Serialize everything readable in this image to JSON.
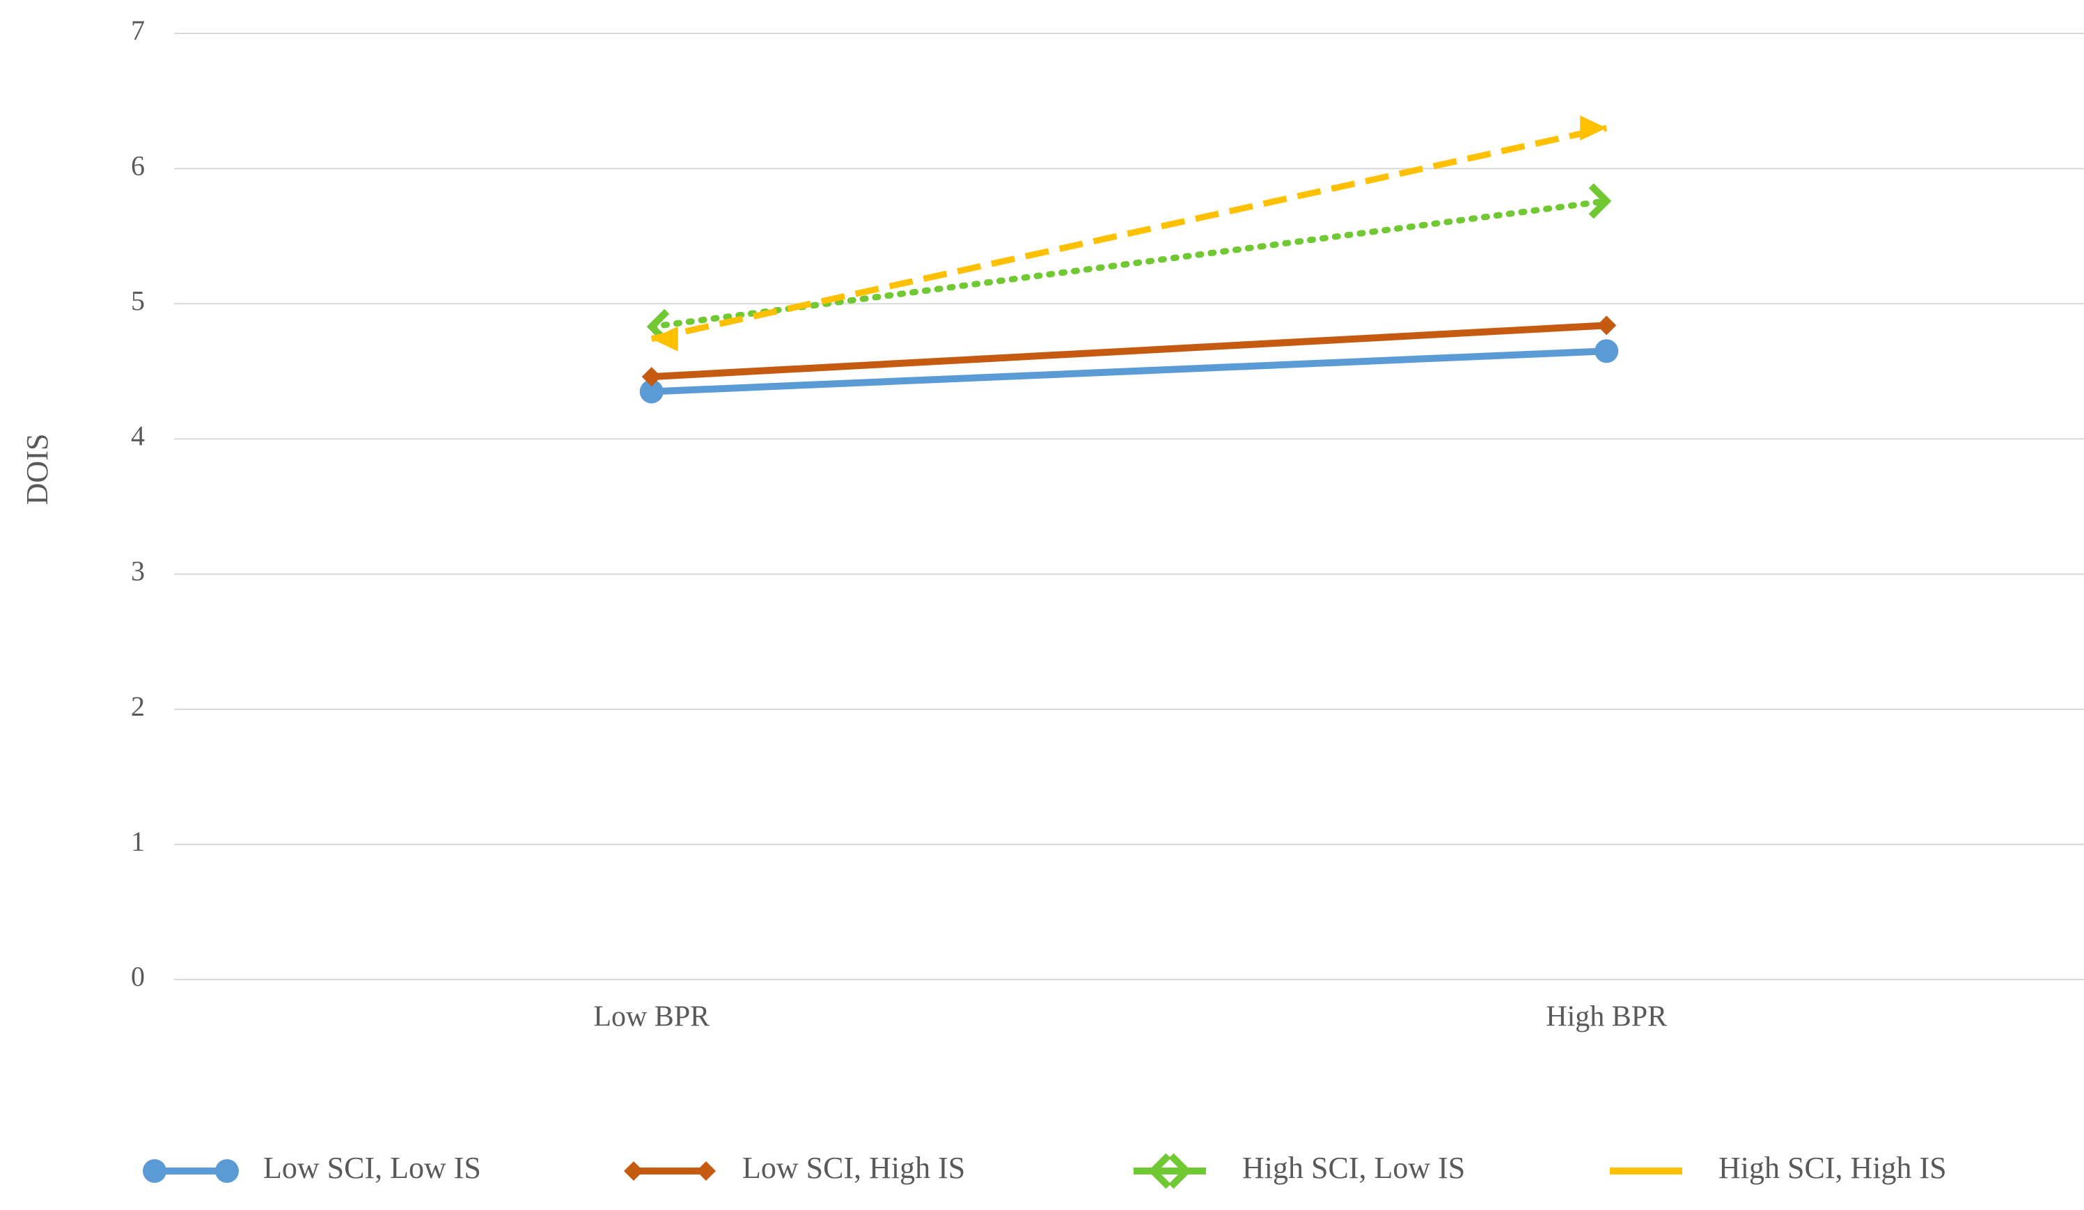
{
  "chart_data": {
    "type": "line",
    "y_label": "DOIS",
    "categories": [
      "Low BPR",
      "High BPR"
    ],
    "ylim": [
      0,
      7
    ],
    "yticks": [
      0,
      1,
      2,
      3,
      4,
      5,
      6,
      7
    ],
    "grid": true,
    "legend": "bottom",
    "series": [
      {
        "name": "Low SCI, Low IS",
        "color": "#5b9bd5",
        "line_style": "solid",
        "marker": "circle",
        "values": [
          4.35,
          4.65
        ]
      },
      {
        "name": "Low SCI, High IS",
        "color": "#c55a11",
        "line_style": "solid",
        "marker": "diamond",
        "values": [
          4.46,
          4.84
        ]
      },
      {
        "name": "High SCI, Low IS",
        "color": "#70c832",
        "line_style": "dotted",
        "marker": "chevron",
        "values": [
          4.83,
          5.76
        ]
      },
      {
        "name": "High SCI, High IS",
        "color": "#ffc000",
        "line_style": "dashed",
        "marker": "arrow",
        "values": [
          4.74,
          6.3
        ]
      }
    ]
  }
}
